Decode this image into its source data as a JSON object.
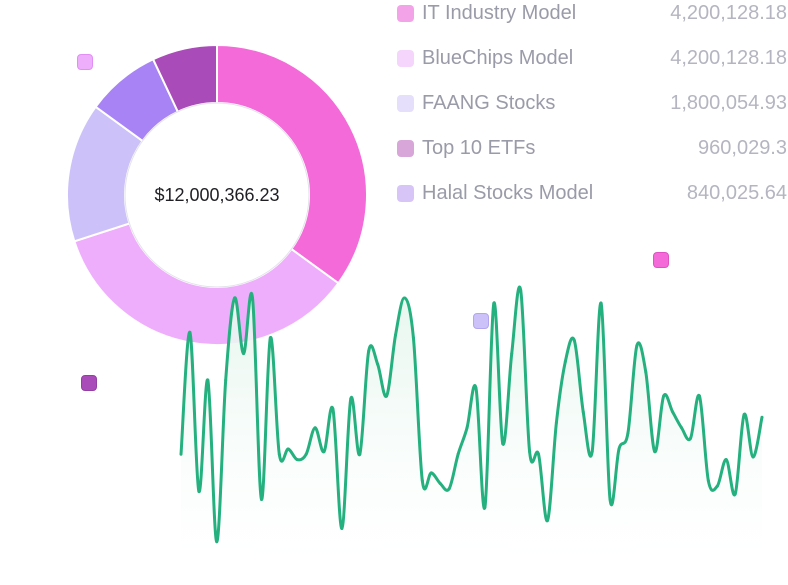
{
  "chart_data": [
    {
      "type": "pie",
      "variant": "donut",
      "center_label": "$12,000,366.23",
      "legend_placement": "right",
      "series": [
        {
          "name": "IT Industry Model",
          "value": 4200128.18,
          "value_label": "4,200,128.18",
          "color": "#f46ad8",
          "swatch": "#f3a3e8"
        },
        {
          "name": "BlueChips Model",
          "value": 4200128.18,
          "value_label": "4,200,128.18",
          "color": "#eeaefc",
          "swatch": "#f6d5fc"
        },
        {
          "name": "FAANG Stocks",
          "value": 1800054.93,
          "value_label": "1,800,054.93",
          "color": "#ccc1f8",
          "swatch": "#e5dffb"
        },
        {
          "name": "Top 10 ETFs",
          "value": 960029.3,
          "value_label": "960,029.3",
          "color": "#a783f5",
          "swatch": "#d9a6da"
        },
        {
          "name": "Halal Stocks Model",
          "value": 840025.64,
          "value_label": "840,025.64",
          "color": "#a94bb9",
          "swatch": "#d7c5f7"
        }
      ]
    },
    {
      "type": "area",
      "color": "#25b07f",
      "fill": "#e6f6ee",
      "ylim": [
        0,
        100
      ],
      "grid": false,
      "values": [
        38,
        84,
        24,
        66,
        5,
        66,
        97,
        76,
        97,
        21,
        82,
        38,
        40,
        36,
        38,
        48,
        39,
        55,
        10,
        59,
        38,
        77,
        72,
        60,
        83,
        97,
        82,
        28,
        31,
        27,
        25,
        38,
        48,
        63,
        18,
        95,
        42,
        76,
        100,
        39,
        38,
        13,
        50,
        73,
        81,
        54,
        39,
        95,
        21,
        40,
        46,
        79,
        69,
        39,
        60,
        54,
        48,
        44,
        60,
        28,
        26,
        36,
        23,
        53,
        37,
        52
      ]
    }
  ],
  "markers": [
    {
      "name": "marker-pink",
      "color": "#eeaefc",
      "border": "#e18ff5"
    },
    {
      "name": "marker-purple",
      "color": "#a94bb9",
      "border": "#943fa3"
    },
    {
      "name": "marker-lavender",
      "color": "#ccc1f8",
      "border": "#b3a6ee"
    },
    {
      "name": "marker-magenta",
      "color": "#f46ad8",
      "border": "#e052c4"
    }
  ]
}
